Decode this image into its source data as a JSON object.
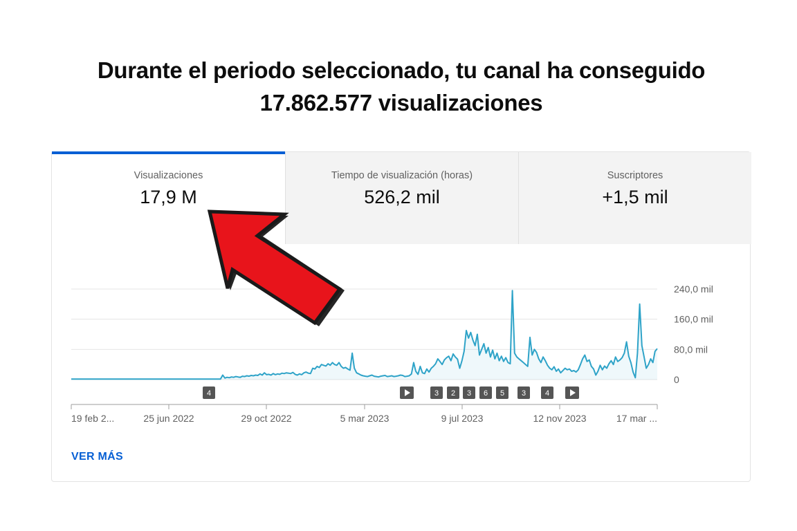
{
  "headline": {
    "line1": "Durante el periodo seleccionado, tu canal ha conseguido",
    "line2": "17.862.577 visualizaciones"
  },
  "tabs": [
    {
      "label": "Visualizaciones",
      "value": "17,9 M",
      "active": true
    },
    {
      "label": "Tiempo de visualización (horas)",
      "value": "526,2 mil",
      "active": false
    },
    {
      "label": "Suscriptores",
      "value": "+1,5 mil",
      "active": false
    }
  ],
  "chart_data": {
    "type": "area",
    "y_tick_labels": [
      "240,0 mil",
      "160,0 mil",
      "80,0 mil",
      "0"
    ],
    "y_ticks": [
      240000,
      160000,
      80000,
      0
    ],
    "ylim": [
      0,
      240000
    ],
    "x_tick_labels": [
      "19 feb 2...",
      "25 jun 2022",
      "29 oct 2022",
      "5 mar 2023",
      "9 jul 2023",
      "12 nov 2023",
      "17 mar ..."
    ],
    "series": [
      {
        "color": "#2ea3c8",
        "values": [
          1500,
          1500,
          1500,
          1500,
          1500,
          1500,
          1500,
          1500,
          1500,
          1500,
          1500,
          1500,
          1500,
          1500,
          1500,
          1500,
          1500,
          1500,
          1500,
          1500,
          1500,
          1500,
          1500,
          1500,
          1500,
          1500,
          1500,
          1500,
          1500,
          1500,
          1500,
          1500,
          1500,
          1500,
          1500,
          1500,
          1500,
          1500,
          1500,
          1500,
          1500,
          1500,
          1500,
          1500,
          1500,
          1500,
          1500,
          1500,
          1500,
          1500,
          1500,
          1500,
          1500,
          1500,
          1500,
          1500,
          1500,
          1500,
          1500,
          1500,
          1500,
          1500,
          1500,
          1500,
          1500,
          1500,
          1500,
          1500,
          1500,
          12000,
          4000,
          6000,
          5000,
          7000,
          6000,
          8000,
          7000,
          6000,
          9000,
          8000,
          10000,
          9000,
          11000,
          10000,
          12000,
          11000,
          15000,
          12000,
          18000,
          13000,
          14000,
          12000,
          16000,
          13000,
          15000,
          14000,
          17000,
          16000,
          18000,
          17000,
          16000,
          19000,
          14000,
          12000,
          15000,
          13000,
          18000,
          20000,
          17000,
          16000,
          30000,
          28000,
          35000,
          32000,
          40000,
          38000,
          36000,
          42000,
          38000,
          45000,
          40000,
          38000,
          45000,
          35000,
          30000,
          32000,
          28000,
          25000,
          70000,
          30000,
          18000,
          15000,
          12000,
          10000,
          9000,
          8000,
          10000,
          12000,
          9000,
          8000,
          7000,
          9000,
          10000,
          11000,
          8000,
          9000,
          10000,
          8000,
          9000,
          10000,
          12000,
          11000,
          8000,
          9000,
          10000,
          15000,
          45000,
          22000,
          14000,
          35000,
          18000,
          16000,
          28000,
          20000,
          30000,
          35000,
          42000,
          55000,
          48000,
          40000,
          52000,
          58000,
          62000,
          50000,
          68000,
          60000,
          54000,
          30000,
          50000,
          75000,
          130000,
          110000,
          125000,
          105000,
          90000,
          120000,
          65000,
          80000,
          95000,
          70000,
          85000,
          60000,
          78000,
          55000,
          70000,
          50000,
          62000,
          48000,
          58000,
          45000,
          42000,
          236000,
          70000,
          60000,
          55000,
          50000,
          45000,
          40000,
          35000,
          112000,
          65000,
          80000,
          72000,
          55000,
          45000,
          60000,
          50000,
          38000,
          30000,
          26000,
          34000,
          22000,
          28000,
          18000,
          24000,
          30000,
          26000,
          28000,
          22000,
          24000,
          20000,
          26000,
          40000,
          55000,
          65000,
          48000,
          52000,
          35000,
          28000,
          12000,
          22000,
          38000,
          26000,
          36000,
          30000,
          42000,
          50000,
          40000,
          60000,
          48000,
          52000,
          58000,
          70000,
          100000,
          62000,
          45000,
          20000,
          5000,
          70000,
          200000,
          90000,
          60000,
          30000,
          40000,
          55000,
          45000,
          75000,
          82000
        ]
      }
    ],
    "markers": [
      {
        "label": "4",
        "type": "count"
      },
      {
        "label": "▶",
        "type": "video"
      },
      {
        "label": "3",
        "type": "count"
      },
      {
        "label": "2",
        "type": "count"
      },
      {
        "label": "3",
        "type": "count"
      },
      {
        "label": "6",
        "type": "count"
      },
      {
        "label": "5",
        "type": "count"
      },
      {
        "label": "3",
        "type": "count"
      },
      {
        "label": "4",
        "type": "count"
      },
      {
        "label": "▶",
        "type": "video"
      }
    ]
  },
  "see_more": "VER MÁS",
  "annotation_arrow": {
    "color": "#e8141b",
    "outline": "#262626",
    "icon": "arrow-up-left-icon"
  }
}
